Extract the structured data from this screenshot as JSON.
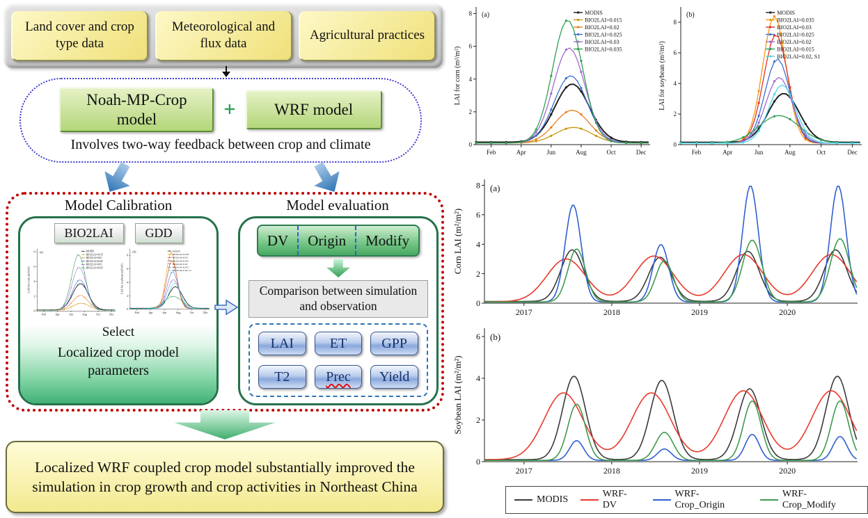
{
  "flowchart": {
    "inputs": [
      "Land cover and crop type data",
      "Meteorological and flux data",
      "Agricultural practices"
    ],
    "models": {
      "left": "Noah-MP-Crop model",
      "plus": "+",
      "right": "WRF model",
      "caption": "Involves two-way feedback between crop and climate"
    },
    "calibration": {
      "title": "Model Calibration",
      "param_boxes": [
        "BIO2LAI",
        "GDD"
      ],
      "select": "Select",
      "result": "Localized crop model parameters"
    },
    "evaluation": {
      "title": "Model evaluation",
      "experiments": [
        "DV",
        "Origin",
        "Modify"
      ],
      "comparison": "Comparison between simulation and observation",
      "metrics": [
        "LAI",
        "ET",
        "GPP",
        "T2",
        "Prec",
        "Yield"
      ]
    },
    "conclusion": "Localized WRF coupled crop model substantially improved the simulation in crop growth and crop activities in Northeast China"
  },
  "bottom_legend": {
    "entries": [
      {
        "label": "MODIS",
        "color": "#3a3a3a"
      },
      {
        "label": "WRF-DV",
        "color": "#e8392a"
      },
      {
        "label": "WRF-Crop_Origin",
        "color": "#2f5fd0"
      },
      {
        "label": "WRF-Crop_Modify",
        "color": "#3f9b4f"
      }
    ]
  },
  "chart_data": [
    {
      "id": "lai_corn",
      "type": "line",
      "panel": "(a)",
      "ylabel": "LAI for corn (m²/m²)",
      "xlim": [
        1,
        12.6
      ],
      "ylim": [
        0,
        8.4
      ],
      "yticks": [
        0,
        2,
        4,
        6,
        8
      ],
      "xticks": [
        {
          "v": 2,
          "label": "Feb"
        },
        {
          "v": 4,
          "label": "Apr"
        },
        {
          "v": 6,
          "label": "Jun"
        },
        {
          "v": 8,
          "label": "Aug"
        },
        {
          "v": 10,
          "label": "Oct"
        },
        {
          "v": 12,
          "label": "Dec"
        }
      ],
      "step": 0.25,
      "legend_inside": true,
      "legend_x": 0.56,
      "series": [
        {
          "name": "MODIS",
          "color": "#1a1a1a",
          "lw": 1.9,
          "base": 0.15,
          "markers": true,
          "peaks": [
            {
              "c": 7.4,
              "w": 1.15,
              "h": 3.55
            }
          ]
        },
        {
          "name": "BIO2LAI=0.015",
          "color": "#c8960c",
          "base": 0.1,
          "markers": true,
          "peaks": [
            {
              "c": 7.5,
              "w": 1.2,
              "h": 0.95
            }
          ]
        },
        {
          "name": "BIO2LAI=0.02",
          "color": "#e87d1e",
          "base": 0.1,
          "markers": true,
          "peaks": [
            {
              "c": 7.4,
              "w": 1.15,
              "h": 2.0
            }
          ]
        },
        {
          "name": "BIO2LAI=0.025",
          "color": "#3b6fce",
          "base": 0.1,
          "markers": true,
          "peaks": [
            {
              "c": 7.3,
              "w": 1.1,
              "h": 4.1
            }
          ]
        },
        {
          "name": "BIO2LAI=0.03",
          "color": "#a06ad0",
          "base": 0.1,
          "markers": true,
          "peaks": [
            {
              "c": 7.2,
              "w": 1.05,
              "h": 5.8
            }
          ]
        },
        {
          "name": "BIO2LAI=0.035",
          "color": "#2f9e52",
          "base": 0.1,
          "markers": true,
          "peaks": [
            {
              "c": 7.1,
              "w": 1.0,
              "h": 7.5
            }
          ]
        }
      ]
    },
    {
      "id": "lai_soybean",
      "type": "line",
      "panel": "(b)",
      "ylabel": "LAI for soybean (m²/m²)",
      "xlim": [
        1,
        12.6
      ],
      "ylim": [
        0,
        9
      ],
      "yticks": [
        0,
        2,
        4,
        6,
        8
      ],
      "xticks": [
        {
          "v": 2,
          "label": "Feb"
        },
        {
          "v": 4,
          "label": "Apr"
        },
        {
          "v": 6,
          "label": "Jun"
        },
        {
          "v": 8,
          "label": "Aug"
        },
        {
          "v": 10,
          "label": "Oct"
        },
        {
          "v": 12,
          "label": "Dec"
        }
      ],
      "step": 0.25,
      "legend_inside": true,
      "legend_x": 0.47,
      "series": [
        {
          "name": "MODIS",
          "color": "#1a1a1a",
          "lw": 1.9,
          "base": 0.15,
          "markers": true,
          "peaks": [
            {
              "c": 7.6,
              "w": 1.0,
              "h": 3.2
            }
          ]
        },
        {
          "name": "BIO2LAI=0.035",
          "color": "#f09a10",
          "base": 0.1,
          "markers": true,
          "peaks": [
            {
              "c": 7.0,
              "w": 0.75,
              "h": 8.3
            }
          ]
        },
        {
          "name": "BIO2LAI=0.03",
          "color": "#e03127",
          "base": 0.1,
          "markers": true,
          "peaks": [
            {
              "c": 7.1,
              "w": 0.78,
              "h": 7.1
            }
          ]
        },
        {
          "name": "BIO2LAI=0.025",
          "color": "#3b6fce",
          "base": 0.1,
          "markers": true,
          "peaks": [
            {
              "c": 7.2,
              "w": 0.8,
              "h": 5.5
            }
          ]
        },
        {
          "name": "BIO2LAI=0.02",
          "color": "#a06ad0",
          "base": 0.1,
          "markers": true,
          "peaks": [
            {
              "c": 7.3,
              "w": 0.85,
              "h": 4.3
            }
          ]
        },
        {
          "name": "BIO2LAI=0.015",
          "color": "#2f9e52",
          "base": 0.1,
          "markers": true,
          "peaks": [
            {
              "c": 7.3,
              "w": 1.3,
              "h": 1.8
            }
          ]
        },
        {
          "name": "BIO2LAI=0.02, S1",
          "color": "#45d9e8",
          "base": 0.1,
          "markers": true,
          "peaks": [
            {
              "c": 7.5,
              "w": 0.85,
              "h": 3.8
            }
          ]
        }
      ]
    },
    {
      "id": "corn_lai_ts",
      "type": "line",
      "panel": "(a)",
      "ylabel": "Corn LAI (m²/m²)",
      "xlim": [
        2016.55,
        2020.8
      ],
      "ylim": [
        0,
        8.4
      ],
      "yticks": [
        0,
        2,
        4,
        6,
        8
      ],
      "xticks": [
        {
          "v": 2017,
          "label": "2017"
        },
        {
          "v": 2018,
          "label": "2018"
        },
        {
          "v": 2019,
          "label": "2019"
        },
        {
          "v": 2020,
          "label": "2020"
        }
      ],
      "step": 0.02,
      "legend_inside": false,
      "series": [
        {
          "name": "MODIS",
          "color": "#3a3a3a",
          "lw": 1.6,
          "base": 0.12,
          "peaks": [
            {
              "c": 2017.55,
              "w": 0.13,
              "h": 3.5
            },
            {
              "c": 2018.55,
              "w": 0.13,
              "h": 3.0
            },
            {
              "c": 2019.55,
              "w": 0.13,
              "h": 3.4
            },
            {
              "c": 2020.55,
              "w": 0.13,
              "h": 3.5
            }
          ]
        },
        {
          "name": "WRF-DV",
          "color": "#e8392a",
          "lw": 1.6,
          "base": 0.1,
          "peaks": [
            {
              "c": 2017.48,
              "w": 0.22,
              "h": 2.9
            },
            {
              "c": 2018.48,
              "w": 0.22,
              "h": 3.1
            },
            {
              "c": 2019.5,
              "w": 0.22,
              "h": 3.2
            },
            {
              "c": 2020.5,
              "w": 0.22,
              "h": 3.2
            }
          ]
        },
        {
          "name": "WRF-Crop_Origin",
          "color": "#2f5fd0",
          "lw": 1.6,
          "base": 0.08,
          "peaks": [
            {
              "c": 2017.56,
              "w": 0.09,
              "h": 6.6
            },
            {
              "c": 2018.56,
              "w": 0.09,
              "h": 3.9
            },
            {
              "c": 2019.58,
              "w": 0.09,
              "h": 7.9
            },
            {
              "c": 2020.58,
              "w": 0.09,
              "h": 7.9
            }
          ]
        },
        {
          "name": "WRF-Crop_Modify",
          "color": "#3f9b4f",
          "lw": 1.6,
          "base": 0.08,
          "peaks": [
            {
              "c": 2017.6,
              "w": 0.1,
              "h": 3.6
            },
            {
              "c": 2018.6,
              "w": 0.1,
              "h": 2.8
            },
            {
              "c": 2019.6,
              "w": 0.11,
              "h": 4.2
            },
            {
              "c": 2020.6,
              "w": 0.11,
              "h": 4.3
            }
          ]
        }
      ]
    },
    {
      "id": "soybean_lai_ts",
      "type": "line",
      "panel": "(b)",
      "ylabel": "Soybean LAI (m²/m²)",
      "xlim": [
        2016.55,
        2020.8
      ],
      "ylim": [
        0,
        6.4
      ],
      "yticks": [
        0,
        2,
        4,
        6
      ],
      "xticks": [
        {
          "v": 2017,
          "label": "2017"
        },
        {
          "v": 2018,
          "label": "2018"
        },
        {
          "v": 2019,
          "label": "2019"
        },
        {
          "v": 2020,
          "label": "2020"
        }
      ],
      "step": 0.02,
      "legend_inside": false,
      "series": [
        {
          "name": "MODIS",
          "color": "#3a3a3a",
          "lw": 1.6,
          "base": 0.1,
          "peaks": [
            {
              "c": 2017.57,
              "w": 0.13,
              "h": 4.0
            },
            {
              "c": 2018.57,
              "w": 0.13,
              "h": 3.8
            },
            {
              "c": 2019.57,
              "w": 0.13,
              "h": 3.4
            },
            {
              "c": 2020.57,
              "w": 0.13,
              "h": 4.0
            }
          ]
        },
        {
          "name": "WRF-DV",
          "color": "#e8392a",
          "lw": 1.6,
          "base": 0.1,
          "peaks": [
            {
              "c": 2017.45,
              "w": 0.22,
              "h": 3.2
            },
            {
              "c": 2018.45,
              "w": 0.22,
              "h": 3.2
            },
            {
              "c": 2019.5,
              "w": 0.22,
              "h": 3.3
            },
            {
              "c": 2020.5,
              "w": 0.22,
              "h": 3.3
            }
          ]
        },
        {
          "name": "WRF-Crop_Origin",
          "color": "#2f5fd0",
          "lw": 1.6,
          "base": 0.06,
          "peaks": [
            {
              "c": 2017.6,
              "w": 0.08,
              "h": 0.95
            },
            {
              "c": 2018.6,
              "w": 0.08,
              "h": 0.55
            },
            {
              "c": 2019.6,
              "w": 0.08,
              "h": 1.25
            },
            {
              "c": 2020.6,
              "w": 0.08,
              "h": 1.15
            }
          ]
        },
        {
          "name": "WRF-Crop_Modify",
          "color": "#3f9b4f",
          "lw": 1.6,
          "base": 0.06,
          "peaks": [
            {
              "c": 2017.6,
              "w": 0.1,
              "h": 2.7
            },
            {
              "c": 2018.6,
              "w": 0.1,
              "h": 1.35
            },
            {
              "c": 2019.6,
              "w": 0.1,
              "h": 2.85
            },
            {
              "c": 2020.6,
              "w": 0.1,
              "h": 2.85
            }
          ]
        }
      ]
    }
  ]
}
